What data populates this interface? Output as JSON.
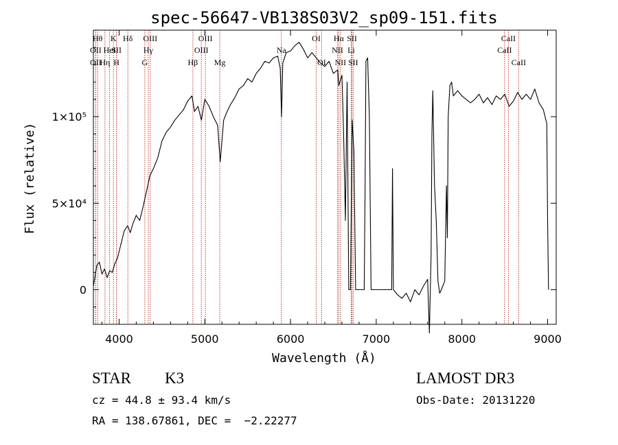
{
  "chart_data": {
    "type": "line",
    "title": "spec-56647-VB138S03V2_sp09-151.fits",
    "xlabel": "Wavelength (Å)",
    "ylabel": "Flux (relative)",
    "xlim": [
      3700,
      9100
    ],
    "ylim": [
      -20000,
      150000
    ],
    "xticks": [
      {
        "value": 4000,
        "label": "4000"
      },
      {
        "value": 5000,
        "label": "5000"
      },
      {
        "value": 6000,
        "label": "6000"
      },
      {
        "value": 7000,
        "label": "7000"
      },
      {
        "value": 8000,
        "label": "8000"
      },
      {
        "value": 9000,
        "label": "9000"
      }
    ],
    "yticks": [
      {
        "value": 0,
        "label": "0"
      },
      {
        "value": 50000,
        "label": "5×10⁴"
      },
      {
        "value": 100000,
        "label": "1×10⁵"
      }
    ],
    "series": [
      {
        "points": [
          [
            3700,
            2000
          ],
          [
            3740,
            14000
          ],
          [
            3770,
            16000
          ],
          [
            3800,
            9000
          ],
          [
            3830,
            12000
          ],
          [
            3860,
            7000
          ],
          [
            3890,
            11000
          ],
          [
            3920,
            10000
          ],
          [
            3950,
            15000
          ],
          [
            3980,
            18000
          ],
          [
            4000,
            22000
          ],
          [
            4030,
            28000
          ],
          [
            4060,
            34000
          ],
          [
            4100,
            37000
          ],
          [
            4130,
            33000
          ],
          [
            4160,
            38000
          ],
          [
            4200,
            43000
          ],
          [
            4240,
            40000
          ],
          [
            4280,
            48000
          ],
          [
            4320,
            57000
          ],
          [
            4360,
            66000
          ],
          [
            4400,
            70000
          ],
          [
            4450,
            76000
          ],
          [
            4500,
            86000
          ],
          [
            4550,
            91000
          ],
          [
            4600,
            94000
          ],
          [
            4650,
            98000
          ],
          [
            4700,
            101000
          ],
          [
            4750,
            104000
          ],
          [
            4800,
            109000
          ],
          [
            4850,
            112000
          ],
          [
            4880,
            103000
          ],
          [
            4920,
            106000
          ],
          [
            4960,
            98000
          ],
          [
            5000,
            110000
          ],
          [
            5050,
            106000
          ],
          [
            5100,
            100000
          ],
          [
            5150,
            95000
          ],
          [
            5180,
            74000
          ],
          [
            5220,
            98000
          ],
          [
            5260,
            103000
          ],
          [
            5300,
            107000
          ],
          [
            5350,
            111000
          ],
          [
            5400,
            116000
          ],
          [
            5450,
            118000
          ],
          [
            5500,
            122000
          ],
          [
            5550,
            120000
          ],
          [
            5600,
            125000
          ],
          [
            5650,
            128000
          ],
          [
            5700,
            132000
          ],
          [
            5750,
            131000
          ],
          [
            5800,
            134000
          ],
          [
            5850,
            135000
          ],
          [
            5880,
            128000
          ],
          [
            5895,
            100000
          ],
          [
            5910,
            131000
          ],
          [
            5950,
            137000
          ],
          [
            6000,
            138000
          ],
          [
            6050,
            141000
          ],
          [
            6100,
            143000
          ],
          [
            6150,
            139000
          ],
          [
            6200,
            134000
          ],
          [
            6250,
            137000
          ],
          [
            6300,
            134000
          ],
          [
            6350,
            131000
          ],
          [
            6400,
            129000
          ],
          [
            6450,
            132000
          ],
          [
            6500,
            125000
          ],
          [
            6550,
            127000
          ],
          [
            6563,
            118000
          ],
          [
            6600,
            124000
          ],
          [
            6620,
            88000
          ],
          [
            6640,
            40000
          ],
          [
            6660,
            120000
          ],
          [
            6680,
            0
          ],
          [
            6700,
            0
          ],
          [
            6720,
            98000
          ],
          [
            6740,
            80000
          ],
          [
            6760,
            0
          ],
          [
            6800,
            0
          ],
          [
            6840,
            0
          ],
          [
            6860,
            0
          ],
          [
            6870,
            60000
          ],
          [
            6880,
            132000
          ],
          [
            6900,
            134000
          ],
          [
            6920,
            100000
          ],
          [
            6940,
            0
          ],
          [
            7000,
            0
          ],
          [
            7100,
            0
          ],
          [
            7180,
            0
          ],
          [
            7190,
            70000
          ],
          [
            7200,
            0
          ],
          [
            7250,
            -3000
          ],
          [
            7300,
            -5000
          ],
          [
            7350,
            -2000
          ],
          [
            7400,
            -7000
          ],
          [
            7450,
            0
          ],
          [
            7500,
            -3000
          ],
          [
            7550,
            2000
          ],
          [
            7600,
            6000
          ],
          [
            7620,
            -25000
          ],
          [
            7640,
            20000
          ],
          [
            7650,
            90000
          ],
          [
            7660,
            115000
          ],
          [
            7680,
            60000
          ],
          [
            7700,
            40000
          ],
          [
            7720,
            5000
          ],
          [
            7740,
            -2000
          ],
          [
            7760,
            0
          ],
          [
            7800,
            5000
          ],
          [
            7820,
            60000
          ],
          [
            7830,
            30000
          ],
          [
            7840,
            100000
          ],
          [
            7860,
            118000
          ],
          [
            7880,
            120000
          ],
          [
            7900,
            112000
          ],
          [
            7950,
            115000
          ],
          [
            8000,
            112000
          ],
          [
            8050,
            110000
          ],
          [
            8100,
            108000
          ],
          [
            8150,
            110000
          ],
          [
            8200,
            113000
          ],
          [
            8250,
            108000
          ],
          [
            8300,
            111000
          ],
          [
            8350,
            107000
          ],
          [
            8400,
            112000
          ],
          [
            8450,
            110000
          ],
          [
            8500,
            113000
          ],
          [
            8550,
            106000
          ],
          [
            8600,
            109000
          ],
          [
            8650,
            114000
          ],
          [
            8700,
            110000
          ],
          [
            8750,
            113000
          ],
          [
            8800,
            110000
          ],
          [
            8850,
            116000
          ],
          [
            8900,
            108000
          ],
          [
            8950,
            104000
          ],
          [
            8990,
            96000
          ],
          [
            9000,
            40000
          ],
          [
            9010,
            0
          ]
        ]
      }
    ],
    "line_markers": [
      {
        "x": 3750,
        "label": "Hθ",
        "row": 0
      },
      {
        "x": 3727,
        "label": "OII",
        "row": 1
      },
      {
        "x": 3727,
        "label": "OII",
        "row": 2
      },
      {
        "x": 3835,
        "label": "Hη",
        "row": 2
      },
      {
        "x": 3889,
        "label": "HeI",
        "row": 1
      },
      {
        "x": 3934,
        "label": "K",
        "row": 0
      },
      {
        "x": 3969,
        "label": "H",
        "row": 2
      },
      {
        "x": 3970,
        "label": "SII",
        "row": 1
      },
      {
        "x": 4102,
        "label": "Hδ",
        "row": 0
      },
      {
        "x": 4300,
        "label": "G",
        "row": 2
      },
      {
        "x": 4340,
        "label": "Hγ",
        "row": 1
      },
      {
        "x": 4363,
        "label": "OIII",
        "row": 0
      },
      {
        "x": 4861,
        "label": "Hβ",
        "row": 2
      },
      {
        "x": 4959,
        "label": "OIII",
        "row": 1
      },
      {
        "x": 5007,
        "label": "OIII",
        "row": 0
      },
      {
        "x": 5175,
        "label": "Mg",
        "row": 2
      },
      {
        "x": 5893,
        "label": "Na",
        "row": 1
      },
      {
        "x": 6300,
        "label": "OI",
        "row": 0
      },
      {
        "x": 6363,
        "label": "OI",
        "row": 2
      },
      {
        "x": 6548,
        "label": "NII",
        "row": 1
      },
      {
        "x": 6563,
        "label": "Hα",
        "row": 0
      },
      {
        "x": 6583,
        "label": "NII",
        "row": 2
      },
      {
        "x": 6708,
        "label": "Li",
        "row": 1
      },
      {
        "x": 6717,
        "label": "SII",
        "row": 0
      },
      {
        "x": 6731,
        "label": "SII",
        "row": 2
      },
      {
        "x": 8498,
        "label": "CaII",
        "row": 1
      },
      {
        "x": 8542,
        "label": "CaII",
        "row": 0
      },
      {
        "x": 8662,
        "label": "CaII",
        "row": 2
      }
    ]
  },
  "info": {
    "class_label": "STAR",
    "subclass": "K3",
    "survey": "LAMOST DR3",
    "cz": "cz = 44.8 ± 93.4 km/s",
    "obs_date": "Obs-Date: 20131220",
    "coords": "RA = 138.67861, DEC =  −2.22277"
  }
}
